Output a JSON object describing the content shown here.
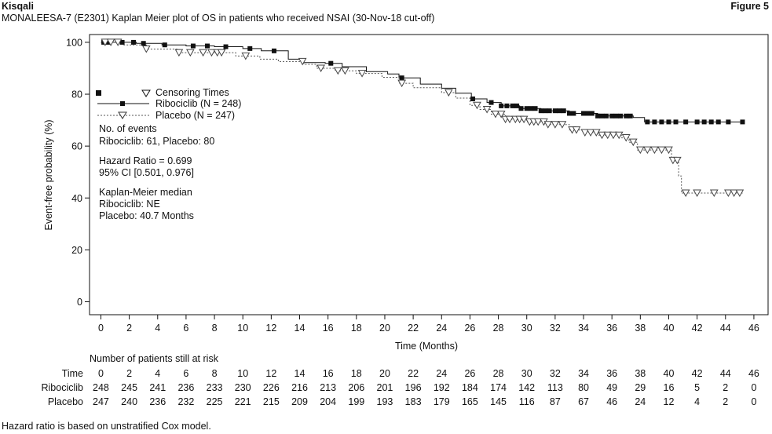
{
  "header": {
    "drug": "Kisqali",
    "figure": "Figure 5",
    "subtitle": "MONALEESA-7 (E2301) Kaplan Meier plot of OS in patients who received NSAI (30-Nov-18 cut-off)"
  },
  "footnote": "Hazard ratio is based on unstratified Cox model.",
  "legend": {
    "censoring": "Censoring Times",
    "ribo": "Ribociclib (N = 248)",
    "placebo": "Placebo (N = 247)"
  },
  "annotations": {
    "events_title": "No. of events",
    "events_values": "Ribociclib: 61, Placebo: 80",
    "hr": "Hazard Ratio = 0.699",
    "ci": "95% CI [0.501, 0.976]",
    "km_title": "Kaplan-Meier median",
    "km_ribo": "Ribociclib: NE",
    "km_placebo": "Placebo: 40.7 Months"
  },
  "risk_table": {
    "title": "Number of patients still at risk",
    "row_labels": [
      "Time",
      "Ribociclib",
      "Placebo"
    ],
    "time": [
      "0",
      "2",
      "4",
      "6",
      "8",
      "10",
      "12",
      "14",
      "16",
      "18",
      "20",
      "22",
      "24",
      "26",
      "28",
      "30",
      "32",
      "34",
      "36",
      "38",
      "40",
      "42",
      "44",
      "46"
    ],
    "ribociclib": [
      "248",
      "245",
      "241",
      "236",
      "233",
      "230",
      "226",
      "216",
      "213",
      "206",
      "201",
      "196",
      "192",
      "184",
      "174",
      "142",
      "113",
      "80",
      "49",
      "29",
      "16",
      "5",
      "2",
      "0"
    ],
    "placebo": [
      "247",
      "240",
      "236",
      "232",
      "225",
      "221",
      "215",
      "209",
      "204",
      "199",
      "193",
      "183",
      "179",
      "165",
      "145",
      "116",
      "87",
      "67",
      "46",
      "24",
      "12",
      "4",
      "2",
      "0"
    ]
  },
  "chart_data": {
    "type": "line",
    "xlabel": "Time (Months)",
    "ylabel": "Event-free probability (%)",
    "xlim": [
      -0.8,
      47
    ],
    "ylim": [
      -5,
      103
    ],
    "xticks": [
      0,
      2,
      4,
      6,
      8,
      10,
      12,
      14,
      16,
      18,
      20,
      22,
      24,
      26,
      28,
      30,
      32,
      34,
      36,
      38,
      40,
      42,
      44,
      46
    ],
    "yticks": [
      0,
      20,
      40,
      60,
      80,
      100
    ],
    "grid": false,
    "legend_position": "upper-left",
    "series": [
      {
        "name": "Ribociclib (N = 248)",
        "color": "#111111",
        "line_style": "solid",
        "marker": "filled-square",
        "steps": [
          [
            0,
            100
          ],
          [
            2.5,
            99.6
          ],
          [
            4.3,
            99
          ],
          [
            6,
            98.6
          ],
          [
            8,
            98.3
          ],
          [
            10,
            97.6
          ],
          [
            11.3,
            96.7
          ],
          [
            13.2,
            93.5
          ],
          [
            14.2,
            92.2
          ],
          [
            15.8,
            91.9
          ],
          [
            17,
            90.6
          ],
          [
            18.7,
            88.7
          ],
          [
            20.2,
            87.8
          ],
          [
            21,
            86.3
          ],
          [
            22.5,
            83.9
          ],
          [
            24,
            82.3
          ],
          [
            25,
            80.4
          ],
          [
            26.1,
            78.2
          ],
          [
            27.2,
            76.8
          ],
          [
            28.2,
            75.5
          ],
          [
            29.5,
            74.5
          ],
          [
            31,
            73.6
          ],
          [
            33,
            72.6
          ],
          [
            35,
            71.6
          ],
          [
            37.5,
            71.0
          ],
          [
            38.3,
            69.3
          ],
          [
            45.2,
            69.3
          ]
        ],
        "censor_times": [
          0.2,
          0.5,
          1.5,
          2.3,
          3,
          4.5,
          6.5,
          7.5,
          8.8,
          10.5,
          12.2,
          16.2,
          21.2,
          26.2,
          27.5,
          28.2,
          28.6,
          29,
          29.3,
          29.6,
          30,
          30.3,
          30.6,
          31,
          31.3,
          31.6,
          32,
          32.3,
          32.6,
          33,
          33.3,
          34,
          34.3,
          34.6,
          35,
          35.3,
          35.6,
          36,
          36.3,
          36.6,
          37,
          37.3,
          38.5,
          39,
          39.5,
          40,
          40.5,
          41.2,
          42,
          42.5,
          43,
          43.5,
          44.2,
          45.2
        ]
      },
      {
        "name": "Placebo (N = 247)",
        "color": "#555555",
        "line_style": "dashed",
        "marker": "open-triangle-down",
        "steps": [
          [
            0,
            100
          ],
          [
            1.5,
            99
          ],
          [
            3.2,
            97.4
          ],
          [
            5.5,
            96
          ],
          [
            9.5,
            94.7
          ],
          [
            11.2,
            93.5
          ],
          [
            12.5,
            92.6
          ],
          [
            14.3,
            91.5
          ],
          [
            15.2,
            90
          ],
          [
            16.5,
            89
          ],
          [
            18,
            88
          ],
          [
            19.8,
            86.5
          ],
          [
            21,
            84.2
          ],
          [
            22,
            82.5
          ],
          [
            24,
            80.6
          ],
          [
            25,
            78.5
          ],
          [
            26,
            75.7
          ],
          [
            26.7,
            74.1
          ],
          [
            27.5,
            72.3
          ],
          [
            28.5,
            70.3
          ],
          [
            30,
            69.3
          ],
          [
            31.5,
            68.3
          ],
          [
            33,
            66.2
          ],
          [
            34,
            65.2
          ],
          [
            35,
            64.2
          ],
          [
            36.7,
            63.2
          ],
          [
            37.2,
            61.5
          ],
          [
            37.8,
            58.5
          ],
          [
            40,
            58.5
          ],
          [
            40.2,
            54.5
          ],
          [
            40.7,
            48.5
          ],
          [
            40.9,
            41.9
          ],
          [
            45.2,
            41.9
          ]
        ],
        "censor_times": [
          0.3,
          0.7,
          1.2,
          3.2,
          5.5,
          6.3,
          7.2,
          7.8,
          8.2,
          8.5,
          10.2,
          14.2,
          15.5,
          16.7,
          17.2,
          18.4,
          21.2,
          24.5,
          26.5,
          27.2,
          27.8,
          28.2,
          28.5,
          28.8,
          29.2,
          29.5,
          29.8,
          30.2,
          30.5,
          30.8,
          31.2,
          31.5,
          32,
          32.5,
          33.2,
          33.5,
          34.1,
          34.5,
          34.9,
          35.3,
          35.7,
          36.1,
          36.5,
          37,
          37.5,
          38,
          38.5,
          39,
          39.5,
          40,
          40.3,
          40.6,
          41.2,
          42,
          43.2,
          44.2,
          44.6,
          45
        ]
      }
    ]
  }
}
